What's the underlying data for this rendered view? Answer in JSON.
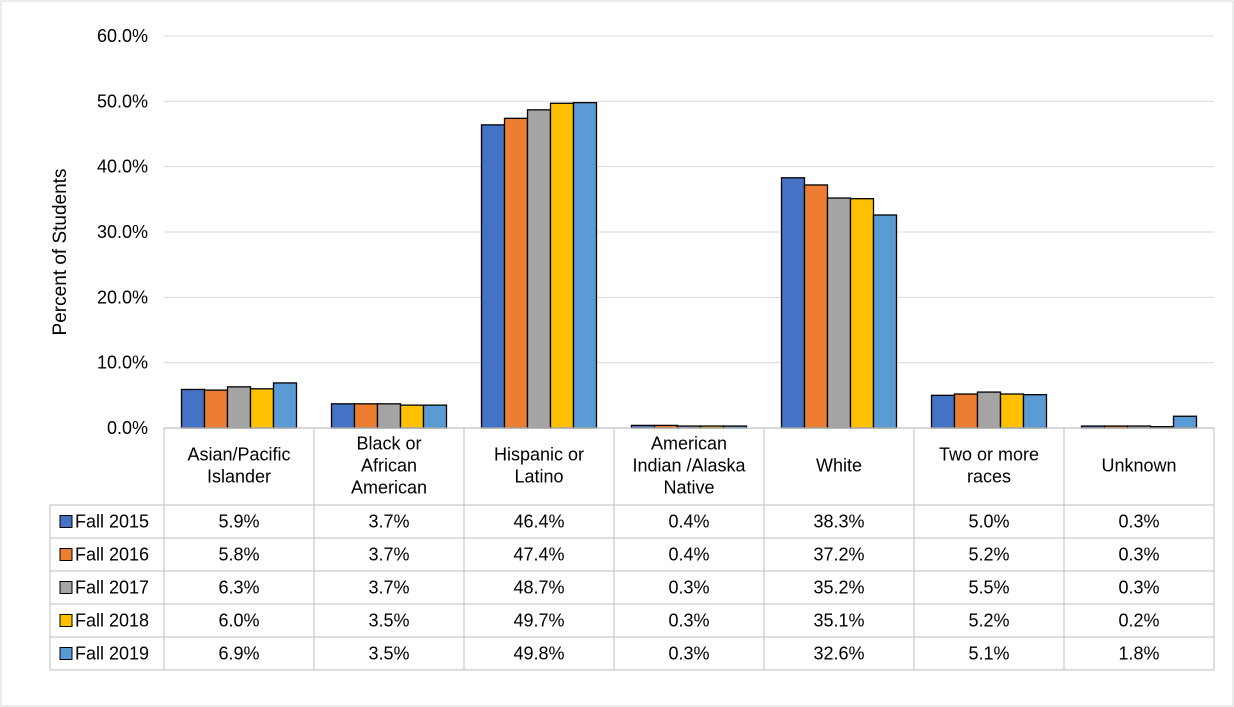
{
  "chart_data": {
    "type": "bar",
    "ylabel": "Percent of Students",
    "ylim": [
      0,
      60
    ],
    "yticks": [
      "0.0%",
      "10.0%",
      "20.0%",
      "30.0%",
      "40.0%",
      "50.0%",
      "60.0%"
    ],
    "grid": true,
    "legend": "data-table-left",
    "categories": [
      [
        "Asian/Pacific",
        "Islander"
      ],
      [
        "Black or",
        "African",
        "American"
      ],
      [
        "Hispanic or",
        "Latino"
      ],
      [
        "American",
        "Indian /Alaska",
        "Native"
      ],
      [
        "White"
      ],
      [
        "Two or more",
        "races"
      ],
      [
        "Unknown"
      ]
    ],
    "series": [
      {
        "name": "Fall 2015",
        "color": "#4472C4",
        "values": [
          5.9,
          3.7,
          46.4,
          0.4,
          38.3,
          5.0,
          0.3
        ],
        "labels": [
          "5.9%",
          "3.7%",
          "46.4%",
          "0.4%",
          "38.3%",
          "5.0%",
          "0.3%"
        ]
      },
      {
        "name": "Fall 2016",
        "color": "#ED7D31",
        "values": [
          5.8,
          3.7,
          47.4,
          0.4,
          37.2,
          5.2,
          0.3
        ],
        "labels": [
          "5.8%",
          "3.7%",
          "47.4%",
          "0.4%",
          "37.2%",
          "5.2%",
          "0.3%"
        ]
      },
      {
        "name": "Fall 2017",
        "color": "#A5A5A5",
        "values": [
          6.3,
          3.7,
          48.7,
          0.3,
          35.2,
          5.5,
          0.3
        ],
        "labels": [
          "6.3%",
          "3.7%",
          "48.7%",
          "0.3%",
          "35.2%",
          "5.5%",
          "0.3%"
        ]
      },
      {
        "name": "Fall 2018",
        "color": "#FFC000",
        "values": [
          6.0,
          3.5,
          49.7,
          0.3,
          35.1,
          5.2,
          0.2
        ],
        "labels": [
          "6.0%",
          "3.5%",
          "49.7%",
          "0.3%",
          "35.1%",
          "5.2%",
          "0.2%"
        ]
      },
      {
        "name": "Fall 2019",
        "color": "#5B9BD5",
        "values": [
          6.9,
          3.5,
          49.8,
          0.3,
          32.6,
          5.1,
          1.8
        ],
        "labels": [
          "6.9%",
          "3.5%",
          "49.8%",
          "0.3%",
          "32.6%",
          "5.1%",
          "1.8%"
        ]
      }
    ]
  }
}
